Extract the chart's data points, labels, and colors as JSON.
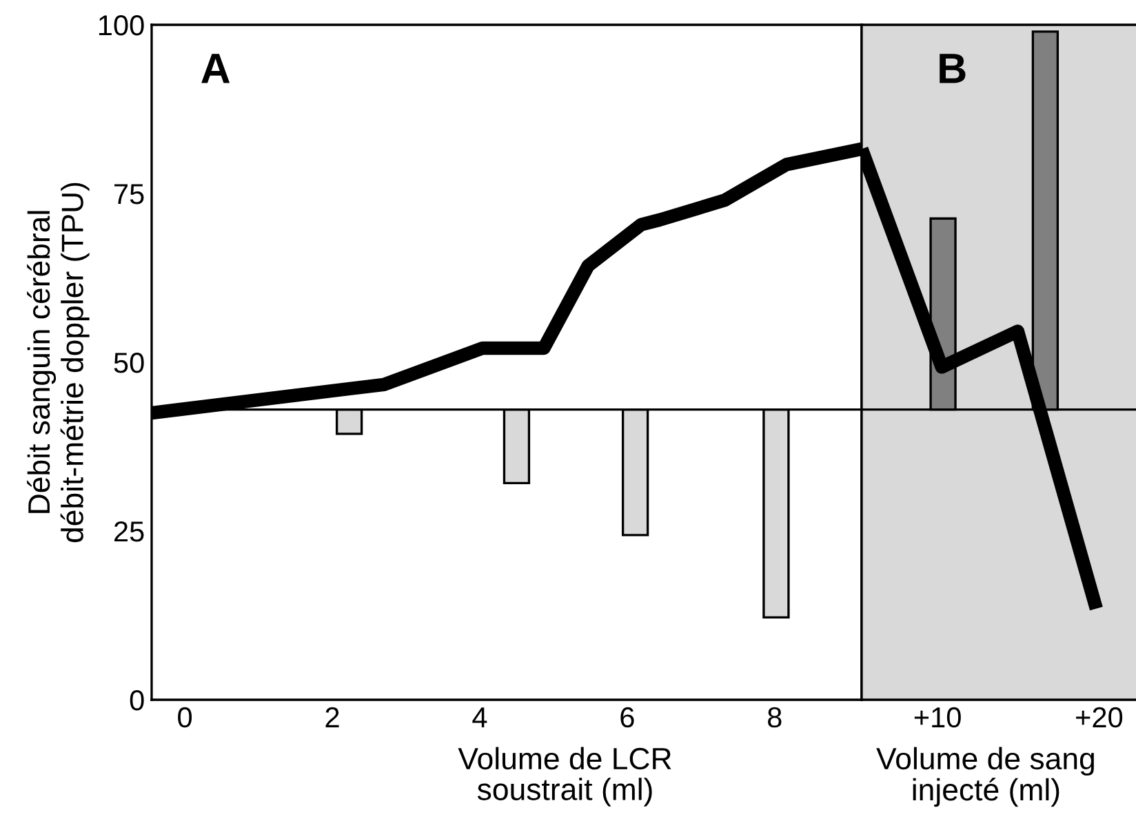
{
  "chart_data": [
    {
      "type": "bar",
      "ylabel": "Débit sanguin cérébral\ndébit-métrie doppler (TPU)",
      "xlabel": "Volume de LCR\nsoustrait (ml)",
      "annotations": [
        "A"
      ],
      "xlim": [
        -0.45,
        9.18
      ],
      "xticks": [
        0,
        2,
        4,
        6,
        8
      ],
      "ylim": [
        0,
        100
      ],
      "yticks": [
        0,
        25,
        50,
        75,
        100
      ],
      "ref_lines": [
        {
          "axis": "y",
          "value": 43,
          "color": "#000000"
        }
      ],
      "series": [
        {
          "color": "#d9d9d9",
          "x": [
            2.23,
            4.5,
            6.11,
            8.02
          ],
          "base": [
            43,
            43,
            43,
            43
          ],
          "values": [
            -3.6,
            -10.9,
            -18.6,
            -30.8
          ]
        },
        {
          "type": "line",
          "color": "#000000",
          "x": [
            -0.45,
            2.7,
            4.04,
            4.87,
            5.47,
            6.19,
            6.44,
            7.32,
            8.16,
            9.18
          ],
          "values": [
            42.5,
            46.7,
            52.1,
            52.1,
            64.3,
            70.4,
            71.1,
            74,
            79.3,
            81.6
          ]
        }
      ]
    },
    {
      "type": "bar",
      "xlabel": "Volume de sang\ninjecté (ml)",
      "annotations": [
        "B"
      ],
      "xlim": [
        5.3,
        22.8
      ],
      "xticks": [
        {
          "value": 10,
          "label": "+10"
        },
        {
          "value": 20,
          "label": "+20"
        }
      ],
      "ylim": [
        0,
        100
      ],
      "tick_labels": "x",
      "ref_lines": [
        {
          "axis": "y",
          "value": 43,
          "color": "#000000"
        }
      ],
      "bands": [
        {
          "axis": "x",
          "from": 5.3,
          "to": 22.8,
          "color": "#d9d9d9"
        }
      ],
      "series": [
        {
          "color": "#808080",
          "x": [
            10.34,
            16.67
          ],
          "base": [
            43,
            43
          ],
          "values": [
            28.3,
            56
          ]
        },
        {
          "type": "line",
          "color": "#000000",
          "x": [
            5.3,
            10.26,
            14.96,
            19.83
          ],
          "values": [
            81.6,
            49.3,
            54.6,
            13.5
          ]
        }
      ]
    }
  ]
}
